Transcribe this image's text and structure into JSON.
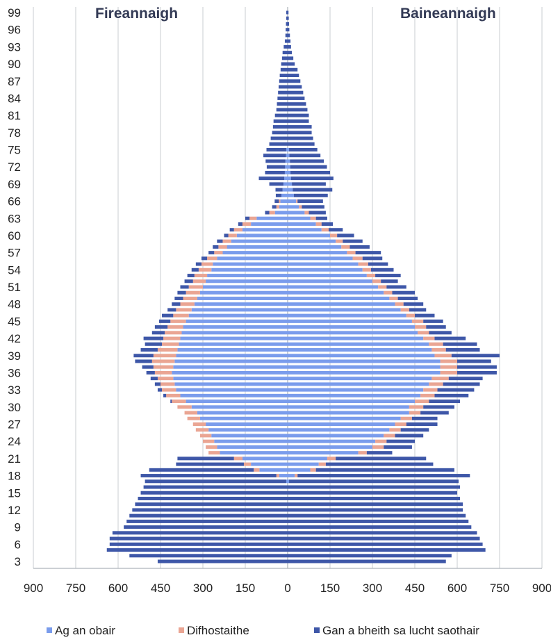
{
  "chart_data": {
    "type": "bar",
    "orientation": "horizontal-pyramid",
    "left_title": "Fireannaigh",
    "right_title": "Baineannaigh",
    "ages": [
      99,
      98,
      97,
      96,
      95,
      94,
      93,
      92,
      91,
      90,
      89,
      88,
      87,
      86,
      85,
      84,
      83,
      82,
      81,
      80,
      79,
      78,
      77,
      76,
      75,
      74,
      73,
      72,
      71,
      70,
      69,
      68,
      67,
      66,
      65,
      64,
      63,
      62,
      61,
      60,
      59,
      58,
      57,
      56,
      55,
      54,
      53,
      52,
      51,
      50,
      49,
      48,
      47,
      46,
      45,
      44,
      43,
      42,
      41,
      40,
      39,
      38,
      37,
      36,
      35,
      34,
      33,
      32,
      31,
      30,
      29,
      28,
      27,
      26,
      25,
      24,
      23,
      22,
      21,
      20,
      19,
      18,
      17,
      16,
      15,
      14,
      13,
      12,
      11,
      10,
      9,
      8,
      7,
      6,
      5,
      4,
      3
    ],
    "y_tick_labels": [
      "99",
      "96",
      "93",
      "90",
      "87",
      "84",
      "81",
      "78",
      "75",
      "72",
      "69",
      "66",
      "63",
      "60",
      "57",
      "54",
      "51",
      "48",
      "45",
      "42",
      "39",
      "36",
      "33",
      "30",
      "27",
      "24",
      "21",
      "18",
      "15",
      "12",
      "9",
      "6",
      "3"
    ],
    "x_tick_labels": [
      "900",
      "750",
      "600",
      "450",
      "300",
      "150",
      "0",
      "150",
      "300",
      "450",
      "600",
      "750",
      "900"
    ],
    "xlim": [
      -900,
      900
    ],
    "grid": true,
    "legend_position": "bottom",
    "series_colors": {
      "employed": "#7a9cec",
      "unemployed": "#eaa593",
      "not_in_labour_force": "#3e57a8"
    },
    "legend": [
      {
        "key": "employed",
        "name": "Ag an obair"
      },
      {
        "key": "unemployed",
        "name": "Difhostaithe"
      },
      {
        "key": "not_in_labour_force",
        "name": "Gan a bheith sa lucht saothair"
      }
    ],
    "male": {
      "employed": [
        0,
        0,
        0,
        0,
        0,
        0,
        0,
        0,
        0,
        0,
        0,
        0,
        0,
        0,
        0,
        0,
        0,
        0,
        0,
        0,
        0,
        0,
        0,
        0,
        5,
        6,
        8,
        9,
        10,
        12,
        15,
        18,
        22,
        26,
        30,
        45,
        110,
        130,
        160,
        180,
        200,
        215,
        230,
        250,
        265,
        270,
        285,
        290,
        300,
        310,
        320,
        330,
        340,
        350,
        360,
        370,
        375,
        380,
        385,
        390,
        395,
        400,
        405,
        410,
        405,
        400,
        395,
        380,
        360,
        340,
        320,
        310,
        290,
        280,
        270,
        260,
        250,
        240,
        160,
        130,
        100,
        30,
        5,
        0,
        0,
        0,
        0,
        0,
        0,
        0,
        0,
        0,
        0,
        0,
        0,
        0,
        0
      ],
      "unemployed": [
        0,
        0,
        0,
        0,
        0,
        0,
        0,
        0,
        0,
        0,
        0,
        0,
        0,
        0,
        0,
        0,
        0,
        0,
        0,
        0,
        0,
        0,
        0,
        0,
        0,
        0,
        0,
        0,
        0,
        0,
        0,
        0,
        0,
        5,
        10,
        20,
        25,
        30,
        30,
        30,
        30,
        30,
        30,
        35,
        40,
        45,
        45,
        45,
        50,
        50,
        50,
        50,
        55,
        55,
        55,
        55,
        60,
        60,
        60,
        70,
        80,
        80,
        70,
        60,
        55,
        50,
        50,
        50,
        50,
        50,
        45,
        45,
        45,
        45,
        40,
        40,
        40,
        40,
        30,
        25,
        20,
        10,
        0,
        0,
        0,
        0,
        0,
        0,
        0,
        0,
        0,
        0,
        0,
        0,
        0,
        0,
        0
      ],
      "not_in_labour_force": [
        5,
        5,
        6,
        7,
        8,
        10,
        14,
        18,
        20,
        23,
        25,
        28,
        30,
        32,
        34,
        36,
        38,
        40,
        45,
        50,
        52,
        55,
        60,
        65,
        70,
        80,
        70,
        65,
        70,
        90,
        50,
        25,
        20,
        15,
        15,
        15,
        15,
        15,
        15,
        15,
        20,
        20,
        20,
        20,
        20,
        25,
        25,
        30,
        30,
        30,
        30,
        30,
        30,
        40,
        40,
        45,
        45,
        70,
        60,
        60,
        70,
        60,
        40,
        30,
        25,
        20,
        15,
        10,
        5,
        0,
        0,
        0,
        0,
        0,
        0,
        0,
        0,
        0,
        200,
        240,
        370,
        480,
        500,
        510,
        520,
        530,
        540,
        550,
        560,
        570,
        580,
        620,
        630,
        630,
        640,
        560,
        460
      ]
    },
    "female": {
      "employed": [
        0,
        0,
        0,
        0,
        0,
        0,
        0,
        0,
        0,
        0,
        0,
        0,
        0,
        0,
        0,
        0,
        0,
        0,
        0,
        0,
        0,
        0,
        0,
        0,
        5,
        6,
        8,
        9,
        10,
        12,
        15,
        18,
        22,
        30,
        40,
        60,
        80,
        100,
        120,
        150,
        170,
        190,
        210,
        230,
        250,
        265,
        280,
        300,
        320,
        340,
        360,
        380,
        400,
        420,
        440,
        450,
        460,
        480,
        500,
        510,
        520,
        540,
        540,
        540,
        510,
        500,
        480,
        470,
        450,
        430,
        430,
        400,
        380,
        360,
        340,
        310,
        300,
        250,
        140,
        110,
        80,
        25,
        5,
        0,
        0,
        0,
        0,
        0,
        0,
        0,
        0,
        0,
        0,
        0,
        0,
        0,
        0
      ],
      "unemployed": [
        0,
        0,
        0,
        0,
        0,
        0,
        0,
        0,
        0,
        0,
        0,
        0,
        0,
        0,
        0,
        0,
        0,
        0,
        0,
        0,
        0,
        0,
        0,
        0,
        0,
        0,
        0,
        0,
        0,
        0,
        0,
        0,
        0,
        5,
        10,
        15,
        20,
        20,
        25,
        25,
        25,
        30,
        30,
        35,
        35,
        30,
        30,
        30,
        30,
        30,
        30,
        30,
        30,
        30,
        40,
        40,
        40,
        40,
        50,
        50,
        60,
        60,
        60,
        60,
        60,
        50,
        50,
        50,
        50,
        50,
        40,
        40,
        40,
        40,
        40,
        40,
        40,
        30,
        30,
        25,
        20,
        10,
        0,
        0,
        0,
        0,
        0,
        0,
        0,
        0,
        0,
        0,
        0,
        0,
        0,
        0,
        0
      ],
      "not_in_labour_force": [
        3,
        4,
        5,
        6,
        8,
        10,
        12,
        15,
        20,
        25,
        35,
        40,
        45,
        50,
        55,
        60,
        65,
        70,
        75,
        75,
        85,
        85,
        90,
        95,
        100,
        110,
        120,
        130,
        140,
        150,
        120,
        140,
        120,
        90,
        80,
        60,
        40,
        40,
        50,
        60,
        70,
        70,
        90,
        70,
        70,
        80,
        90,
        60,
        70,
        80,
        70,
        70,
        60,
        70,
        70,
        70,
        80,
        110,
        120,
        120,
        170,
        120,
        140,
        140,
        120,
        130,
        130,
        120,
        110,
        110,
        100,
        90,
        110,
        100,
        100,
        100,
        100,
        90,
        320,
        380,
        490,
        610,
        600,
        610,
        600,
        610,
        620,
        620,
        630,
        640,
        650,
        670,
        680,
        690,
        700,
        580,
        560
      ]
    }
  }
}
